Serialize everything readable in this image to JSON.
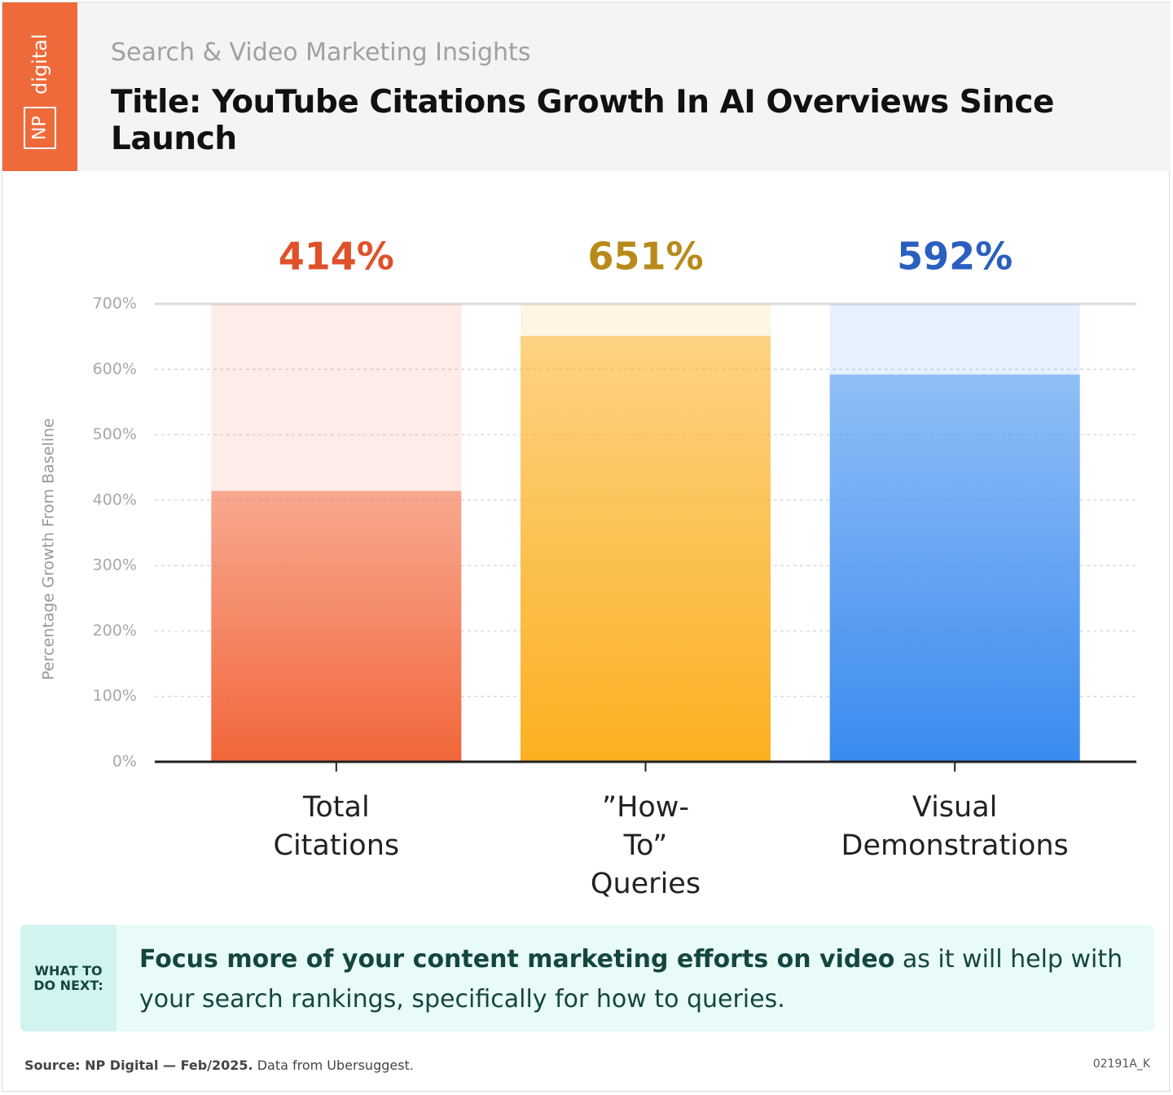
{
  "header": {
    "logo_np": "NP",
    "logo_digital": "digital",
    "subtitle": "Search & Video Marketing Insights"
  },
  "chart_data": {
    "type": "bar",
    "title": "Title: YouTube Citations Growth In AI Overviews Since Launch",
    "ylabel": "Percentage Growth From Baseline",
    "categories": [
      "Total Citations",
      "”How-To” Queries",
      "Visual Demonstrations"
    ],
    "values": [
      414,
      651,
      592
    ],
    "value_labels": [
      "414%",
      "651%",
      "592%"
    ],
    "colors": [
      "#f2663a",
      "#fbb021",
      "#3a8bf0"
    ],
    "label_colors": [
      "#e0502a",
      "#b88a1a",
      "#2a5fc0"
    ],
    "ylim": [
      0,
      700
    ],
    "yticks": [
      {
        "value": 0,
        "label": "0%"
      },
      {
        "value": 100,
        "label": "100%"
      },
      {
        "value": 200,
        "label": "200%"
      },
      {
        "value": 300,
        "label": "300%"
      },
      {
        "value": 400,
        "label": "400%"
      },
      {
        "value": 500,
        "label": "500%"
      },
      {
        "value": 600,
        "label": "600%"
      },
      {
        "value": 700,
        "label": "700%"
      }
    ],
    "grid": true
  },
  "callout": {
    "tag": "WHAT TO DO NEXT:",
    "bold": "Focus more of your content marketing efforts on video",
    "text": " as it will help with your search rankings, specifically for how to queries."
  },
  "footer": {
    "source_bold": "Source: NP Digital — Feb/2025.",
    "source_text": " Data from Ubersuggest.",
    "code": "02191A_K"
  }
}
